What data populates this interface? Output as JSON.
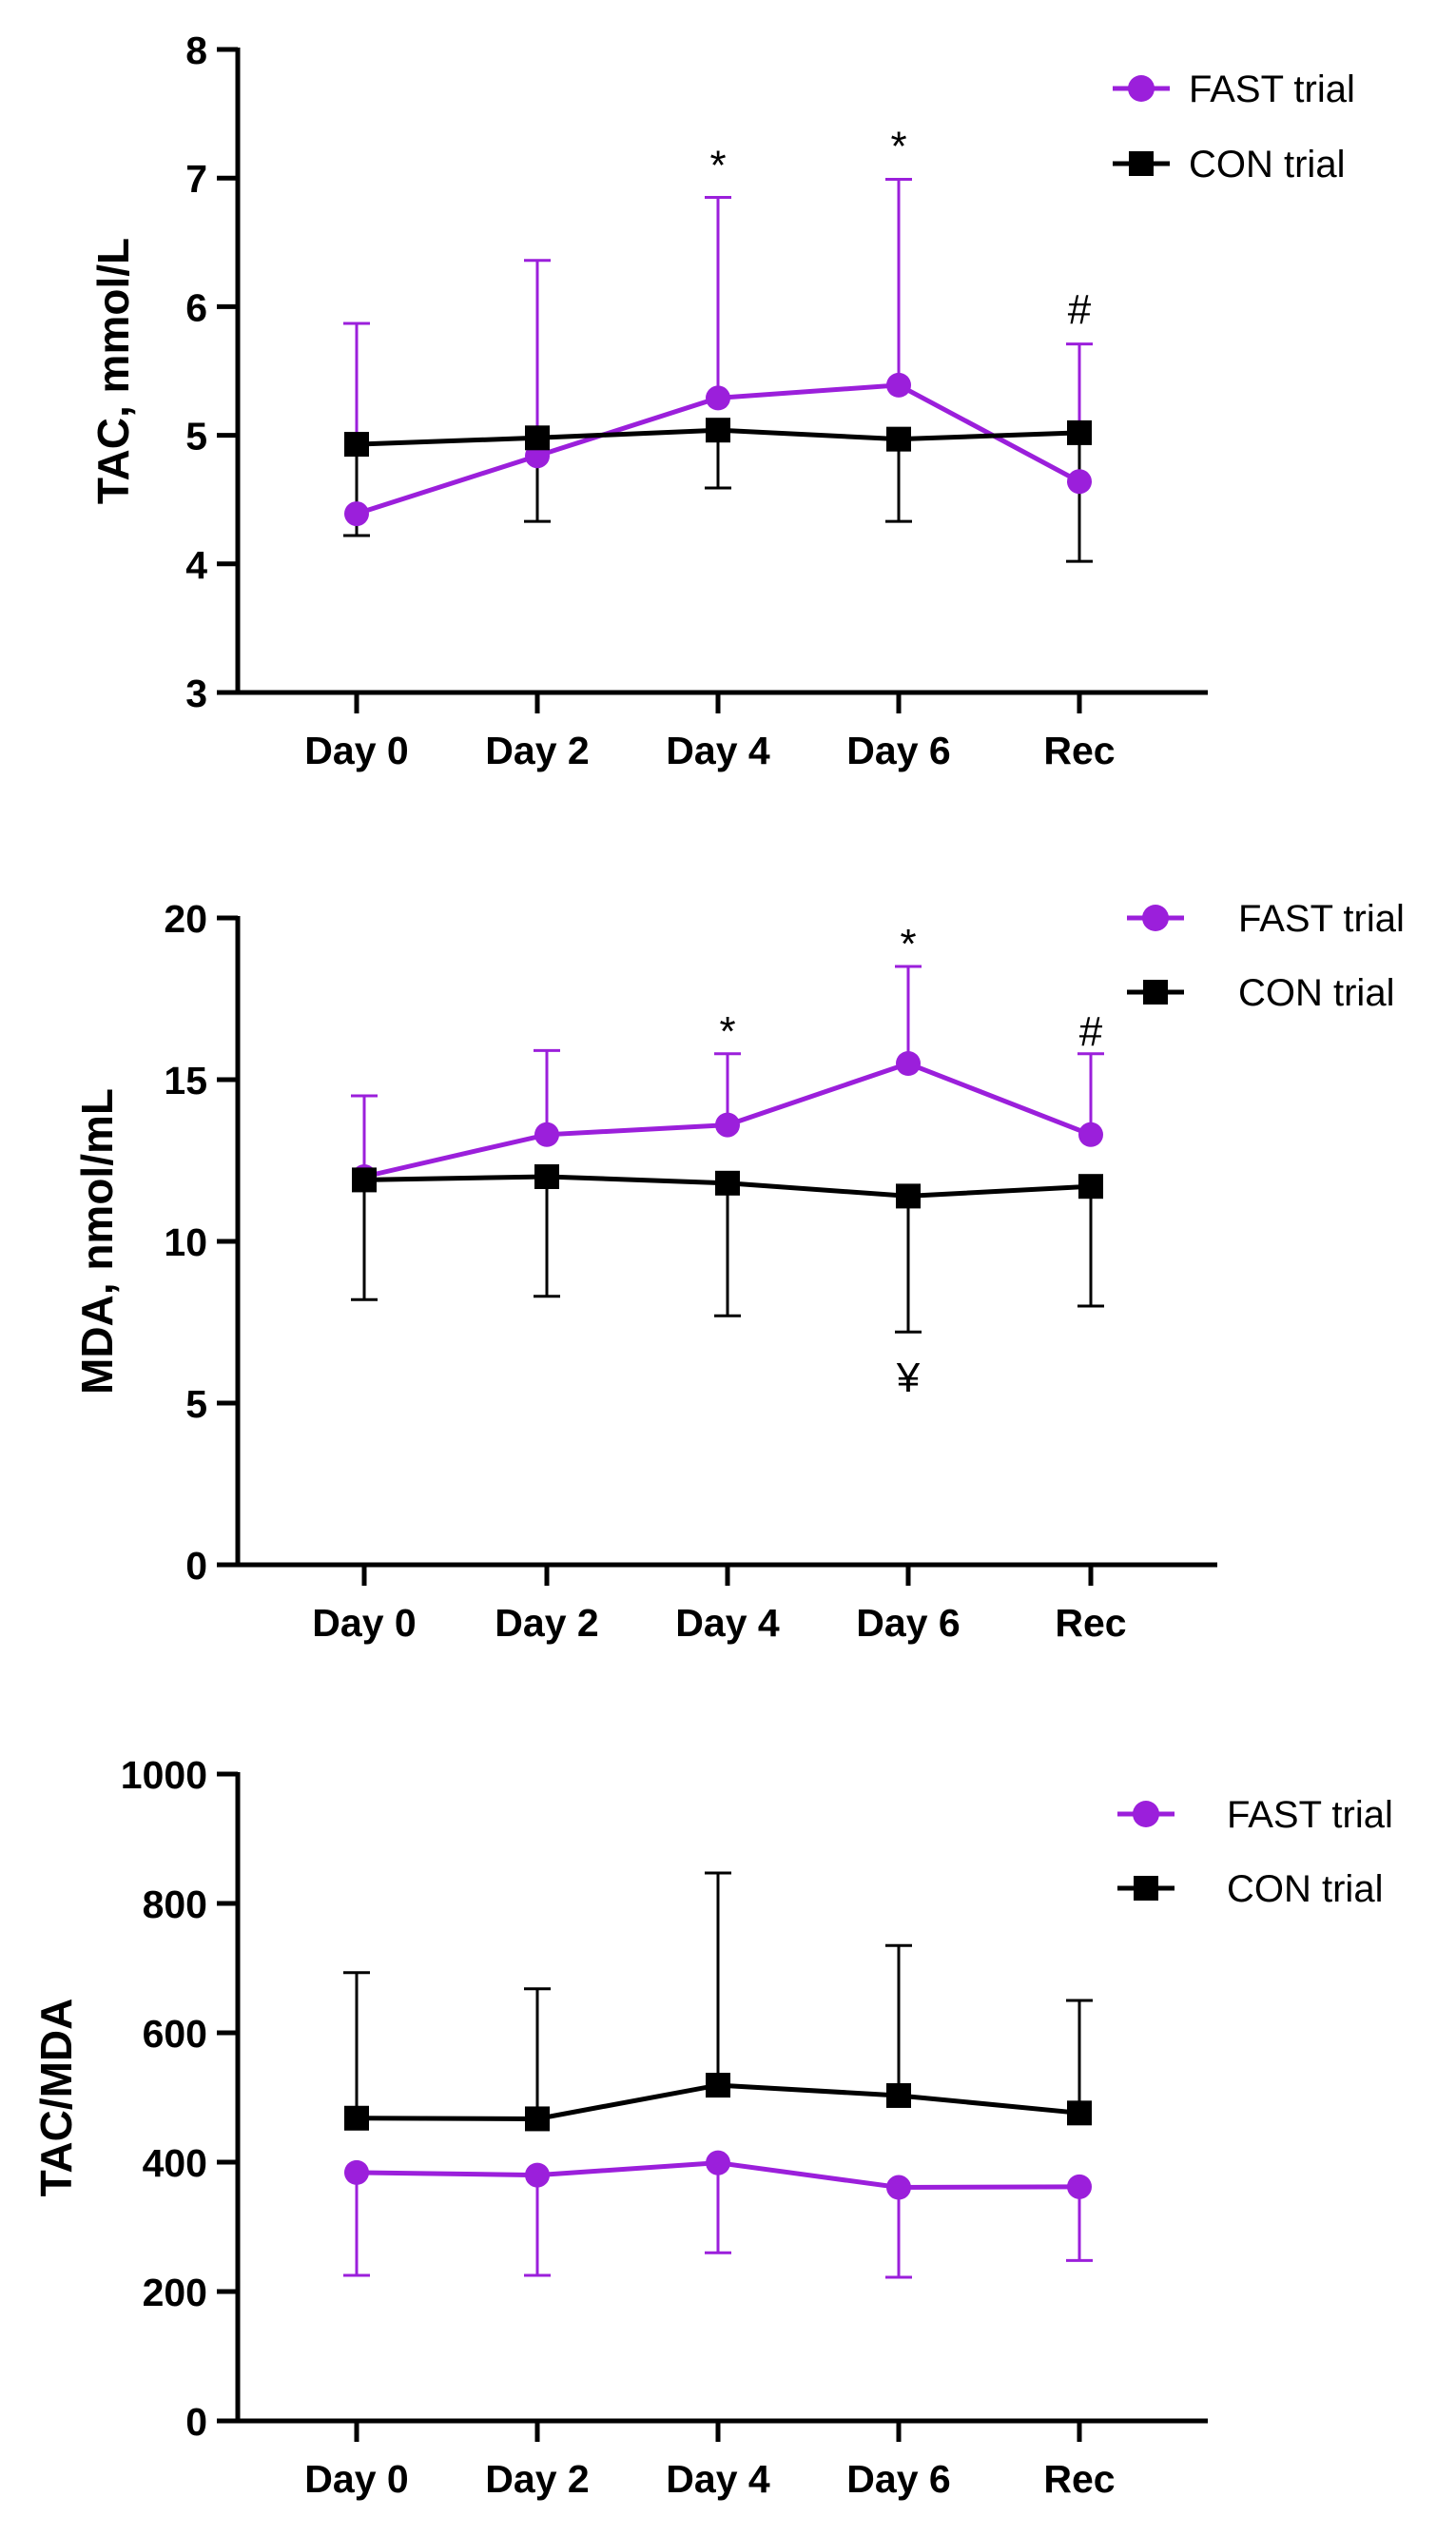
{
  "chart_data": [
    {
      "type": "line",
      "title": "",
      "xlabel": "",
      "ylabel": "TAC, mmol/L",
      "categories": [
        "Day 0",
        "Day 2",
        "Day 4",
        "Day 6",
        "Rec"
      ],
      "ylim": [
        3,
        8
      ],
      "yticks": [
        3,
        4,
        5,
        6,
        7,
        8
      ],
      "legend": {
        "placement": "top-right"
      },
      "series": [
        {
          "name": "FAST trial",
          "color": "#9B1FDB",
          "marker": "circle",
          "values": [
            4.39,
            4.84,
            5.29,
            5.39,
            4.64
          ],
          "error_upper": [
            5.87,
            6.36,
            6.85,
            6.99,
            5.71
          ],
          "error_lower": [
            null,
            null,
            null,
            null,
            null
          ]
        },
        {
          "name": "CON trial",
          "color": "#000000",
          "marker": "square",
          "values": [
            4.93,
            4.98,
            5.04,
            4.97,
            5.02
          ],
          "error_upper": [
            null,
            null,
            null,
            null,
            null
          ],
          "error_lower": [
            4.22,
            4.33,
            4.59,
            4.33,
            4.02
          ]
        }
      ],
      "annotations": [
        {
          "category": "Day 4",
          "value": 7.1,
          "text": "*"
        },
        {
          "category": "Day 6",
          "value": 7.25,
          "text": "*"
        },
        {
          "category": "Rec",
          "value": 5.98,
          "text": "#"
        }
      ]
    },
    {
      "type": "line",
      "title": "",
      "xlabel": "",
      "ylabel": "MDA, nmol/mL",
      "categories": [
        "Day 0",
        "Day 2",
        "Day 4",
        "Day 6",
        "Rec"
      ],
      "ylim": [
        0,
        20
      ],
      "yticks": [
        0,
        5,
        10,
        15,
        20
      ],
      "legend": {
        "placement": "top-right"
      },
      "series": [
        {
          "name": "FAST trial",
          "color": "#9B1FDB",
          "marker": "circle",
          "values": [
            12.0,
            13.3,
            13.6,
            15.5,
            13.3
          ],
          "error_upper": [
            14.5,
            15.9,
            15.8,
            18.5,
            15.8
          ],
          "error_lower": [
            null,
            null,
            null,
            null,
            null
          ]
        },
        {
          "name": "CON trial",
          "color": "#000000",
          "marker": "square",
          "values": [
            11.9,
            12.0,
            11.8,
            11.4,
            11.7
          ],
          "error_upper": [
            null,
            null,
            null,
            null,
            null
          ],
          "error_lower": [
            8.2,
            8.3,
            7.7,
            7.2,
            8.0
          ]
        }
      ],
      "annotations": [
        {
          "category": "Day 4",
          "value": 16.5,
          "text": "*"
        },
        {
          "category": "Day 6",
          "value": 19.2,
          "text": "*"
        },
        {
          "category": "Rec",
          "value": 16.5,
          "text": "#"
        },
        {
          "category": "Day 6",
          "value": 5.8,
          "text": "¥"
        }
      ]
    },
    {
      "type": "line",
      "title": "",
      "xlabel": "",
      "ylabel": "TAC/MDA",
      "categories": [
        "Day 0",
        "Day 2",
        "Day 4",
        "Day 6",
        "Rec"
      ],
      "ylim": [
        0,
        1000
      ],
      "yticks": [
        0,
        200,
        400,
        600,
        800,
        1000
      ],
      "legend": {
        "placement": "top-right"
      },
      "series": [
        {
          "name": "FAST trial",
          "color": "#9B1FDB",
          "marker": "circle",
          "values": [
            384,
            380,
            399,
            361,
            362
          ],
          "error_upper": [
            null,
            null,
            null,
            null,
            null
          ],
          "error_lower": [
            225,
            225,
            260,
            222,
            248
          ]
        },
        {
          "name": "CON trial",
          "color": "#000000",
          "marker": "square",
          "values": [
            468,
            467,
            519,
            503,
            476
          ],
          "error_upper": [
            693,
            668,
            847,
            735,
            650
          ],
          "error_lower": [
            null,
            null,
            null,
            null,
            null
          ]
        }
      ],
      "annotations": []
    }
  ]
}
